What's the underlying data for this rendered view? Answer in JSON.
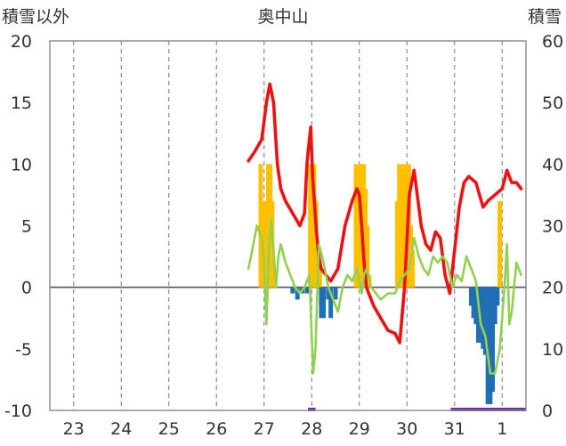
{
  "chart_data": {
    "type": "line",
    "title": "奥中山",
    "ylabel_left": "積雪以外",
    "ylabel_right": "積雪",
    "y_left": {
      "min": -10,
      "max": 20,
      "ticks": [
        -10,
        -5,
        0,
        5,
        10,
        15,
        20
      ]
    },
    "y_right": {
      "min": 0,
      "max": 60,
      "ticks": [
        0,
        10,
        20,
        30,
        40,
        50,
        60
      ]
    },
    "x_categories": [
      "23",
      "24",
      "25",
      "26",
      "27",
      "28",
      "29",
      "30",
      "31",
      "1"
    ],
    "x_range": [
      22.5,
      32.5
    ],
    "grid": "dashed-vertical",
    "colors": {
      "snow_depth": "#ee1111",
      "temperature": "#92d050",
      "precip_positive": "#ffc000",
      "precip_negative": "#1f6fb4",
      "baseline_marks": "#7030a0",
      "frame": "#888888"
    },
    "series": [
      {
        "key": "snow_depth",
        "axis": "right",
        "kind": "line",
        "x": [
          26.67,
          26.8,
          26.95,
          27.05,
          27.12,
          27.2,
          27.28,
          27.35,
          27.45,
          27.6,
          27.75,
          27.85,
          27.9,
          27.95,
          27.98,
          28.02,
          28.1,
          28.15,
          28.2,
          28.3,
          28.4,
          28.55,
          28.7,
          28.85,
          28.95,
          29.0,
          29.05,
          29.1,
          29.15,
          29.2,
          29.3,
          29.45,
          29.6,
          29.75,
          29.85,
          29.95,
          30.05,
          30.15,
          30.3,
          30.4,
          30.5,
          30.6,
          30.7,
          30.8,
          30.9,
          31.0,
          31.1,
          31.2,
          31.3,
          31.45,
          31.6,
          31.7,
          31.85,
          32.0,
          32.1,
          32.2,
          32.3,
          32.4
        ],
        "y": [
          40.5,
          42,
          44,
          50,
          53,
          50,
          40,
          36,
          34,
          32,
          30,
          32,
          40,
          44,
          46,
          38,
          29,
          25,
          23,
          22,
          21,
          23,
          30,
          34,
          36,
          35,
          30,
          24,
          20,
          19,
          17,
          15,
          13,
          12.5,
          11,
          20,
          35,
          39,
          30,
          27,
          26,
          29,
          28,
          22,
          19,
          26,
          33,
          37,
          38,
          37,
          33,
          34,
          35,
          36,
          39,
          37,
          37,
          36
        ]
      },
      {
        "key": "temperature",
        "axis": "left",
        "kind": "line",
        "x": [
          26.67,
          26.75,
          26.85,
          26.95,
          27.0,
          27.05,
          27.1,
          27.15,
          27.2,
          27.25,
          27.3,
          27.35,
          27.45,
          27.55,
          27.65,
          27.75,
          27.85,
          27.95,
          28.0,
          28.03,
          28.08,
          28.15,
          28.25,
          28.35,
          28.45,
          28.55,
          28.65,
          28.75,
          28.85,
          28.95,
          29.0,
          29.05,
          29.1,
          29.15,
          29.25,
          29.35,
          29.45,
          29.6,
          29.75,
          29.85,
          29.95,
          30.05,
          30.15,
          30.25,
          30.35,
          30.45,
          30.55,
          30.65,
          30.75,
          30.85,
          30.95,
          31.05,
          31.15,
          31.25,
          31.35,
          31.45,
          31.55,
          31.65,
          31.75,
          31.85,
          31.95,
          32.05,
          32.1,
          32.15,
          32.2,
          32.3,
          32.4
        ],
        "y": [
          1.5,
          3,
          5,
          4,
          2,
          -3,
          3,
          5.5,
          3,
          0,
          2.5,
          3.5,
          2,
          1,
          0,
          -0.5,
          0,
          1,
          -4,
          -7,
          -5,
          3.5,
          2,
          0,
          -1,
          -2,
          0,
          1,
          0.5,
          1.5,
          0.5,
          -0.5,
          1,
          1.5,
          0,
          -0.5,
          -1,
          -0.5,
          -0.5,
          0.5,
          1,
          1.5,
          4,
          2.5,
          1.5,
          1,
          2.5,
          2,
          2.5,
          2,
          0,
          1,
          0.5,
          2.5,
          1.5,
          0.5,
          -3,
          -4,
          -7,
          -7,
          -5,
          0,
          3.5,
          -3,
          -2,
          2,
          1
        ]
      },
      {
        "key": "precip_positive",
        "axis": "left",
        "kind": "bar",
        "x": [
          26.93,
          26.97,
          27.01,
          27.05,
          27.09,
          27.13,
          27.17,
          27.97,
          28.01,
          28.05,
          28.09,
          28.13,
          28.17,
          28.93,
          28.97,
          29.01,
          29.05,
          29.09,
          29.13,
          29.17,
          29.21,
          29.8,
          29.84,
          29.88,
          29.92,
          29.96,
          30.0,
          30.04,
          30.08,
          30.12,
          31.95
        ],
        "y": [
          10,
          6,
          7,
          5,
          10,
          10,
          7,
          10,
          10,
          10,
          7,
          3,
          1.5,
          10,
          6,
          10,
          6,
          10,
          8,
          5,
          1,
          7,
          10,
          10,
          8,
          10,
          8,
          10,
          5,
          3,
          7
        ]
      },
      {
        "key": "precip_negative",
        "axis": "left",
        "kind": "bar",
        "x": [
          27.6,
          27.7,
          27.8,
          27.9,
          28.2,
          28.25,
          28.35,
          28.4,
          28.5,
          31.35,
          31.4,
          31.45,
          31.5,
          31.55,
          31.6,
          31.65,
          31.7,
          31.75,
          31.8,
          31.85,
          31.9
        ],
        "y": [
          -0.5,
          -1,
          -0.5,
          -0.5,
          -2.5,
          -2.5,
          -1,
          -2.5,
          -1,
          -1.5,
          -2.5,
          -3,
          -4.5,
          -4.5,
          -5,
          -5.5,
          -9.5,
          -9.5,
          -8.5,
          -3,
          -1.5
        ]
      }
    ],
    "baseline_marks": [
      {
        "x1": 27.92,
        "x2": 28.08
      },
      {
        "x1": 30.92,
        "x2": 32.5
      }
    ]
  }
}
